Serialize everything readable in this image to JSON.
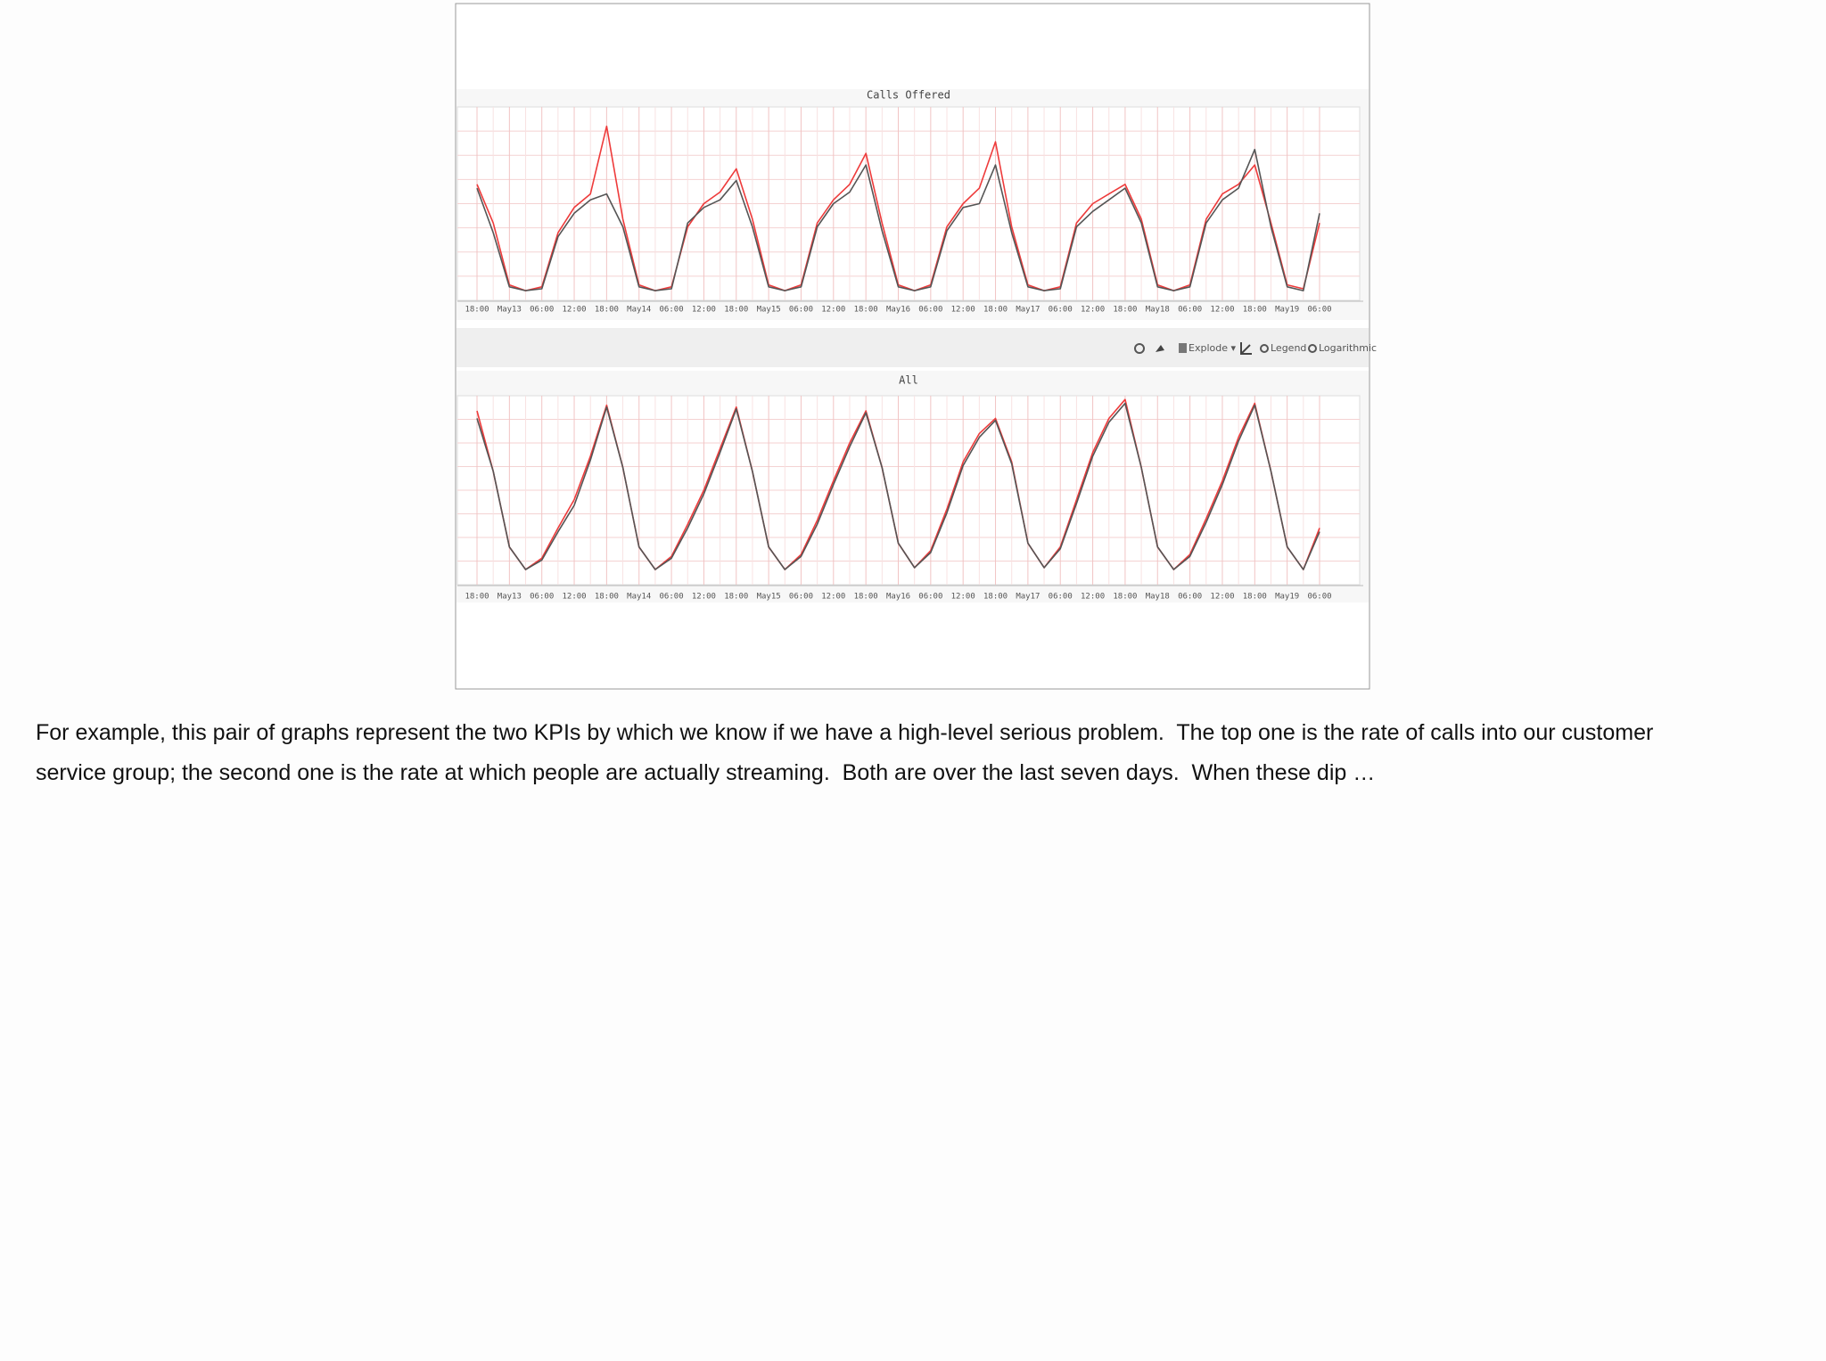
{
  "chart_data": [
    {
      "type": "line",
      "title": "Calls Offered",
      "categories": [
        "18:00",
        null,
        "May13",
        null,
        "06:00",
        null,
        "12:00",
        null,
        "18:00",
        null,
        "May14",
        null,
        "06:00",
        null,
        "12:00",
        null,
        "18:00",
        null,
        "May15",
        null,
        "06:00",
        null,
        "12:00",
        null,
        "18:00",
        null,
        "May16",
        null,
        "06:00",
        null,
        "12:00",
        null,
        "18:00",
        null,
        "May17",
        null,
        "06:00",
        null,
        "12:00",
        null,
        "18:00",
        null,
        "May18",
        null,
        "06:00",
        null,
        "12:00",
        null,
        "18:00",
        null,
        "May19",
        null,
        "06:00"
      ],
      "series": [
        {
          "color": "#ee3b3b",
          "values": [
            60,
            40,
            8,
            5,
            7,
            35,
            48,
            55,
            90,
            42,
            8,
            5,
            7,
            38,
            50,
            56,
            68,
            42,
            8,
            5,
            8,
            40,
            52,
            60,
            76,
            40,
            8,
            5,
            8,
            38,
            50,
            58,
            82,
            38,
            8,
            5,
            7,
            40,
            50,
            55,
            60,
            42,
            8,
            5,
            8,
            42,
            55,
            60,
            70,
            40,
            8,
            6,
            40
          ]
        },
        {
          "color": "#555555",
          "values": [
            58,
            35,
            7,
            5,
            6,
            33,
            45,
            52,
            55,
            38,
            7,
            5,
            6,
            40,
            48,
            52,
            62,
            38,
            7,
            5,
            7,
            38,
            50,
            56,
            70,
            36,
            7,
            5,
            7,
            36,
            48,
            50,
            70,
            35,
            7,
            5,
            6,
            38,
            46,
            52,
            58,
            40,
            7,
            5,
            7,
            40,
            52,
            58,
            78,
            38,
            7,
            5,
            45
          ]
        }
      ],
      "ylim": [
        0,
        100
      ],
      "grid": true
    },
    {
      "type": "line",
      "title": "All",
      "categories": [
        "18:00",
        null,
        "May13",
        null,
        "06:00",
        null,
        "12:00",
        null,
        "18:00",
        null,
        "May14",
        null,
        "06:00",
        null,
        "12:00",
        null,
        "18:00",
        null,
        "May15",
        null,
        "06:00",
        null,
        "12:00",
        null,
        "18:00",
        null,
        "May16",
        null,
        "06:00",
        null,
        "12:00",
        null,
        "18:00",
        null,
        "May17",
        null,
        "06:00",
        null,
        "12:00",
        null,
        "18:00",
        null,
        "May18",
        null,
        "06:00",
        null,
        "12:00",
        null,
        "18:00",
        null,
        "May19",
        null,
        "06:00"
      ],
      "series": [
        {
          "color": "#ee3b3b",
          "values": [
            92,
            60,
            20,
            8,
            14,
            30,
            45,
            68,
            95,
            62,
            20,
            8,
            15,
            32,
            50,
            72,
            94,
            60,
            20,
            8,
            16,
            34,
            55,
            75,
            92,
            62,
            22,
            9,
            18,
            40,
            65,
            80,
            88,
            65,
            22,
            9,
            20,
            45,
            70,
            88,
            98,
            62,
            20,
            8,
            16,
            35,
            55,
            78,
            96,
            60,
            20,
            8,
            30
          ]
        },
        {
          "color": "#555555",
          "values": [
            88,
            60,
            20,
            8,
            13,
            28,
            42,
            66,
            94,
            62,
            20,
            8,
            14,
            30,
            48,
            70,
            93,
            60,
            20,
            8,
            15,
            32,
            53,
            73,
            91,
            62,
            22,
            9,
            17,
            38,
            63,
            78,
            87,
            64,
            22,
            9,
            19,
            43,
            68,
            86,
            96,
            62,
            20,
            8,
            15,
            33,
            53,
            76,
            95,
            60,
            20,
            8,
            28
          ]
        }
      ],
      "ylim": [
        0,
        100
      ],
      "grid": true
    }
  ],
  "toolbar": {
    "explode": "Explode ▾",
    "legend": "Legend",
    "logarithmic": "Logarithmic"
  },
  "caption": [
    "For example, this pair of graphs represent the two KPIs by which we know if we have a high-level serious problem.  The top one is the rate of calls into our customer",
    "service group; the second one is the rate at which people are actually streaming.  Both are over the last seven days.  When these dip …"
  ]
}
